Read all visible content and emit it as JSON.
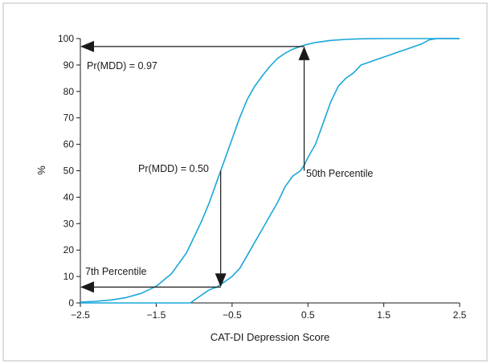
{
  "chart_data": {
    "type": "line",
    "xlabel": "CAT-DI Depression Score",
    "ylabel": "%",
    "xlim": [
      -2.5,
      2.5
    ],
    "ylim": [
      0,
      100
    ],
    "x_ticks": [
      "−2.5",
      "−1.5",
      "−0.5",
      "0.5",
      "1.5",
      "2.5"
    ],
    "x_tick_values": [
      -2.5,
      -1.5,
      -0.5,
      0.5,
      1.5,
      2.5
    ],
    "y_ticks": [
      "0",
      "10",
      "20",
      "30",
      "40",
      "50",
      "60",
      "70",
      "80",
      "90",
      "100"
    ],
    "y_tick_values": [
      0,
      10,
      20,
      30,
      40,
      50,
      60,
      70,
      80,
      90,
      100
    ],
    "grid": false,
    "line_color": "#1aa7d9",
    "series": [
      {
        "x": [
          -2.5,
          -2.3,
          -2.1,
          -1.9,
          -1.7,
          -1.5,
          -1.3,
          -1.1,
          -0.9,
          -0.8,
          -0.7,
          -0.6,
          -0.5,
          -0.4,
          -0.3,
          -0.2,
          -0.1,
          0.0,
          0.1,
          0.2,
          0.3,
          0.45,
          0.6,
          0.8,
          1.0,
          1.2,
          1.5,
          2.0,
          2.5
        ],
        "values": [
          0.3,
          0.6,
          1.1,
          2.0,
          3.6,
          6.3,
          11,
          19,
          31,
          38,
          46,
          54,
          62,
          70,
          77,
          82,
          86,
          89.5,
          92.5,
          94.5,
          96,
          97.5,
          98.5,
          99.3,
          99.7,
          99.9,
          100,
          100,
          100
        ]
      },
      {
        "x": [
          -2.5,
          -2.0,
          -1.5,
          -1.05,
          -1.0,
          -0.95,
          -0.9,
          -0.85,
          -0.8,
          -0.75,
          -0.7,
          -0.65,
          -0.6,
          -0.5,
          -0.4,
          -0.3,
          -0.2,
          -0.1,
          0.0,
          0.1,
          0.2,
          0.3,
          0.4,
          0.45,
          0.5,
          0.6,
          0.7,
          0.8,
          0.9,
          1.0,
          1.1,
          1.2,
          1.3,
          1.4,
          1.5,
          1.6,
          1.7,
          1.8,
          1.9,
          2.0,
          2.1,
          2.2,
          2.5
        ],
        "values": [
          0,
          0,
          0,
          0,
          1,
          2,
          3,
          4,
          5,
          5.5,
          6,
          7,
          8,
          10,
          13,
          18,
          23,
          28,
          33,
          38,
          44,
          48,
          50,
          52,
          55,
          60,
          68,
          76,
          82,
          85,
          87,
          90,
          91,
          92,
          93,
          94,
          95,
          96,
          97,
          98,
          99.5,
          100,
          100
        ]
      }
    ],
    "annotations": [
      {
        "text": "Pr(MDD) = 0.97"
      },
      {
        "text": "Pr(MDD) = 0.50"
      },
      {
        "text": "50th Percentile"
      },
      {
        "text": "7th Percentile"
      }
    ],
    "arrows": [
      {
        "from": [
          0.45,
          50
        ],
        "to": [
          0.45,
          97
        ]
      },
      {
        "from": [
          0.45,
          97
        ],
        "to": [
          -2.5,
          97
        ]
      },
      {
        "from": [
          -0.65,
          50
        ],
        "to": [
          -0.65,
          6
        ]
      },
      {
        "from": [
          -0.65,
          6
        ],
        "to": [
          -2.5,
          6
        ]
      }
    ]
  }
}
